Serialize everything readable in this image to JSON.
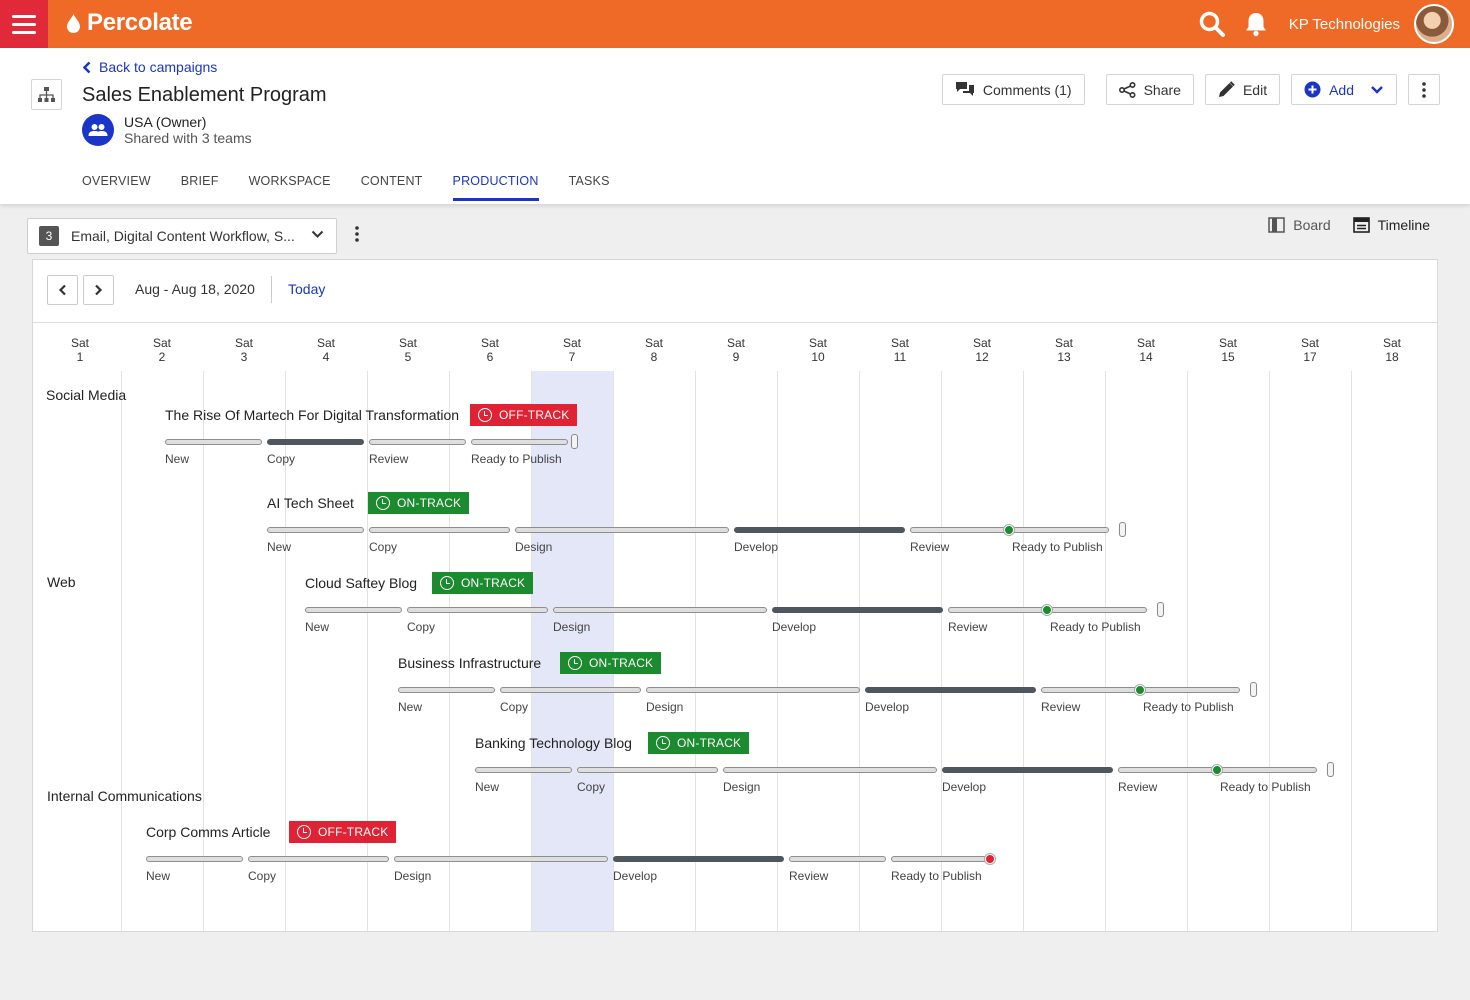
{
  "topbar": {
    "brand": "Percolate",
    "company": "KP Technologies"
  },
  "header": {
    "back_label": "Back to campaigns",
    "title": "Sales Enablement Program",
    "owner": "USA (Owner)",
    "shared": "Shared with 3 teams",
    "tabs": [
      "OVERVIEW",
      "BRIEF",
      "WORKSPACE",
      "CONTENT",
      "PRODUCTION",
      "TASKS"
    ],
    "active_tab": "PRODUCTION",
    "actions": {
      "comments": "Comments (1)",
      "share": "Share",
      "edit": "Edit",
      "add": "Add"
    }
  },
  "filter": {
    "count": "3",
    "label": "Email, Digital Content Workflow, S..."
  },
  "views": {
    "board": "Board",
    "timeline": "Timeline",
    "active": "Timeline"
  },
  "timeline": {
    "date_range": "Aug - Aug 18, 2020",
    "today_label": "Today",
    "days": [
      {
        "dow": "Sat",
        "num": "1"
      },
      {
        "dow": "Sat",
        "num": "2"
      },
      {
        "dow": "Sat",
        "num": "3"
      },
      {
        "dow": "Sat",
        "num": "4"
      },
      {
        "dow": "Sat",
        "num": "5"
      },
      {
        "dow": "Sat",
        "num": "6"
      },
      {
        "dow": "Sat",
        "num": "7"
      },
      {
        "dow": "Sat",
        "num": "8"
      },
      {
        "dow": "Sat",
        "num": "9"
      },
      {
        "dow": "Sat",
        "num": "10"
      },
      {
        "dow": "Sat",
        "num": "11"
      },
      {
        "dow": "Sat",
        "num": "12"
      },
      {
        "dow": "Sat",
        "num": "13"
      },
      {
        "dow": "Sat",
        "num": "14"
      },
      {
        "dow": "Sat",
        "num": "15"
      },
      {
        "dow": "Sat",
        "num": "17"
      },
      {
        "dow": "Sat",
        "num": "18"
      }
    ],
    "groups": [
      "Social Media",
      "Web",
      "Internal Communications"
    ],
    "tasks": [
      {
        "title": "The Rise Of Martech For Digital Transformation",
        "status": "OFF-TRACK",
        "stages": [
          "New",
          "Copy",
          "Review",
          "Ready to Publish"
        ],
        "current_stage": "Copy"
      },
      {
        "title": "AI Tech Sheet",
        "status": "ON-TRACK",
        "stages": [
          "New",
          "Copy",
          "Design",
          "Develop",
          "Review",
          "Ready to Publish"
        ],
        "current_stage": "Develop"
      },
      {
        "title": "Cloud Saftey Blog",
        "status": "ON-TRACK",
        "stages": [
          "New",
          "Copy",
          "Design",
          "Develop",
          "Review",
          "Ready to Publish"
        ],
        "current_stage": "Develop"
      },
      {
        "title": "Business Infrastructure",
        "status": "ON-TRACK",
        "stages": [
          "New",
          "Copy",
          "Design",
          "Develop",
          "Review",
          "Ready to Publish"
        ],
        "current_stage": "Develop"
      },
      {
        "title": "Banking Technology Blog",
        "status": "ON-TRACK",
        "stages": [
          "New",
          "Copy",
          "Design",
          "Develop",
          "Review",
          "Ready to Publish"
        ],
        "current_stage": "Develop"
      },
      {
        "title": "Corp Comms Article",
        "status": "OFF-TRACK",
        "stages": [
          "New",
          "Copy",
          "Design",
          "Develop",
          "Review",
          "Ready to Publish"
        ],
        "current_stage": "Develop"
      }
    ]
  },
  "colors": {
    "brand_orange": "#ee6a26",
    "menu_red": "#e02a3a",
    "link_blue": "#1a35c8",
    "off_track": "#e02235",
    "on_track": "#1c8a2e",
    "today_highlight": "#e4e7f8"
  }
}
